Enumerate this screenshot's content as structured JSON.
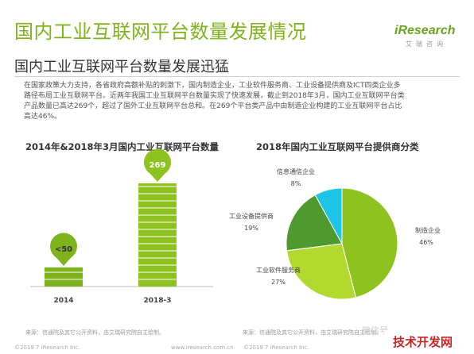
{
  "header": {
    "title": "国内工业互联网平台数量发展情况",
    "subtitle": "国内工业互联网平台数量发展迅猛",
    "logo_text": "iResearch",
    "logo_sub": "艾瑞咨询"
  },
  "paragraph": {
    "lines": [
      "在国家政策大力支持，各省政府高额补贴的刺激下，国内制造企业，工业软件服务商、工业设备提供商及ICT四类企业多",
      "路径布局工业互联网平台。近两年我国工业互联网平台数量实现了快速发展，截止到2018年3月，国内工业互联网平台类",
      "产品数量已高达269个，超过了国外工业互联网平台总和。在269个平台类产品中由制造企业构建的工业互联网平台占比",
      "高达46%。"
    ]
  },
  "chart_data": [
    {
      "type": "bar",
      "title": "2014年&2018年3月国内工业互联网平台数量",
      "categories": [
        "2014",
        "2018-3"
      ],
      "values": [
        50,
        269
      ],
      "value_labels": [
        "<50",
        "269"
      ],
      "colors": [
        "#7fb31c",
        "#8dc21f"
      ]
    },
    {
      "type": "pie",
      "title": "2018年国内工业互联网平台提供商分类",
      "slices": [
        {
          "label": "制造企业",
          "value": 46,
          "pct_label": "46%",
          "color": "#8dc21f"
        },
        {
          "label": "工业软件服务商",
          "value": 27,
          "pct_label": "27%",
          "color": "#b3d930"
        },
        {
          "label": "工业设备提供商",
          "value": 19,
          "pct_label": "19%",
          "color": "#4f9a2e"
        },
        {
          "label": "信息通信企业",
          "value": 8,
          "pct_label": "8%",
          "color": "#1ec4e6"
        }
      ]
    }
  ],
  "footer": {
    "source_left": "来源：信通院及其它公开资料，由艾瑞研究院自主绘制。",
    "source_right": "来源：信通院及其它公开资料，由艾瑞研究院自主绘制。",
    "copyright_left": "©2019.7 iResearch Inc.",
    "url": "www.iresearch.com.cn",
    "copyright_right": "©2019.7 iResearch Inc.",
    "watermark_soft": "微信号",
    "watermark": "技术开发网"
  }
}
